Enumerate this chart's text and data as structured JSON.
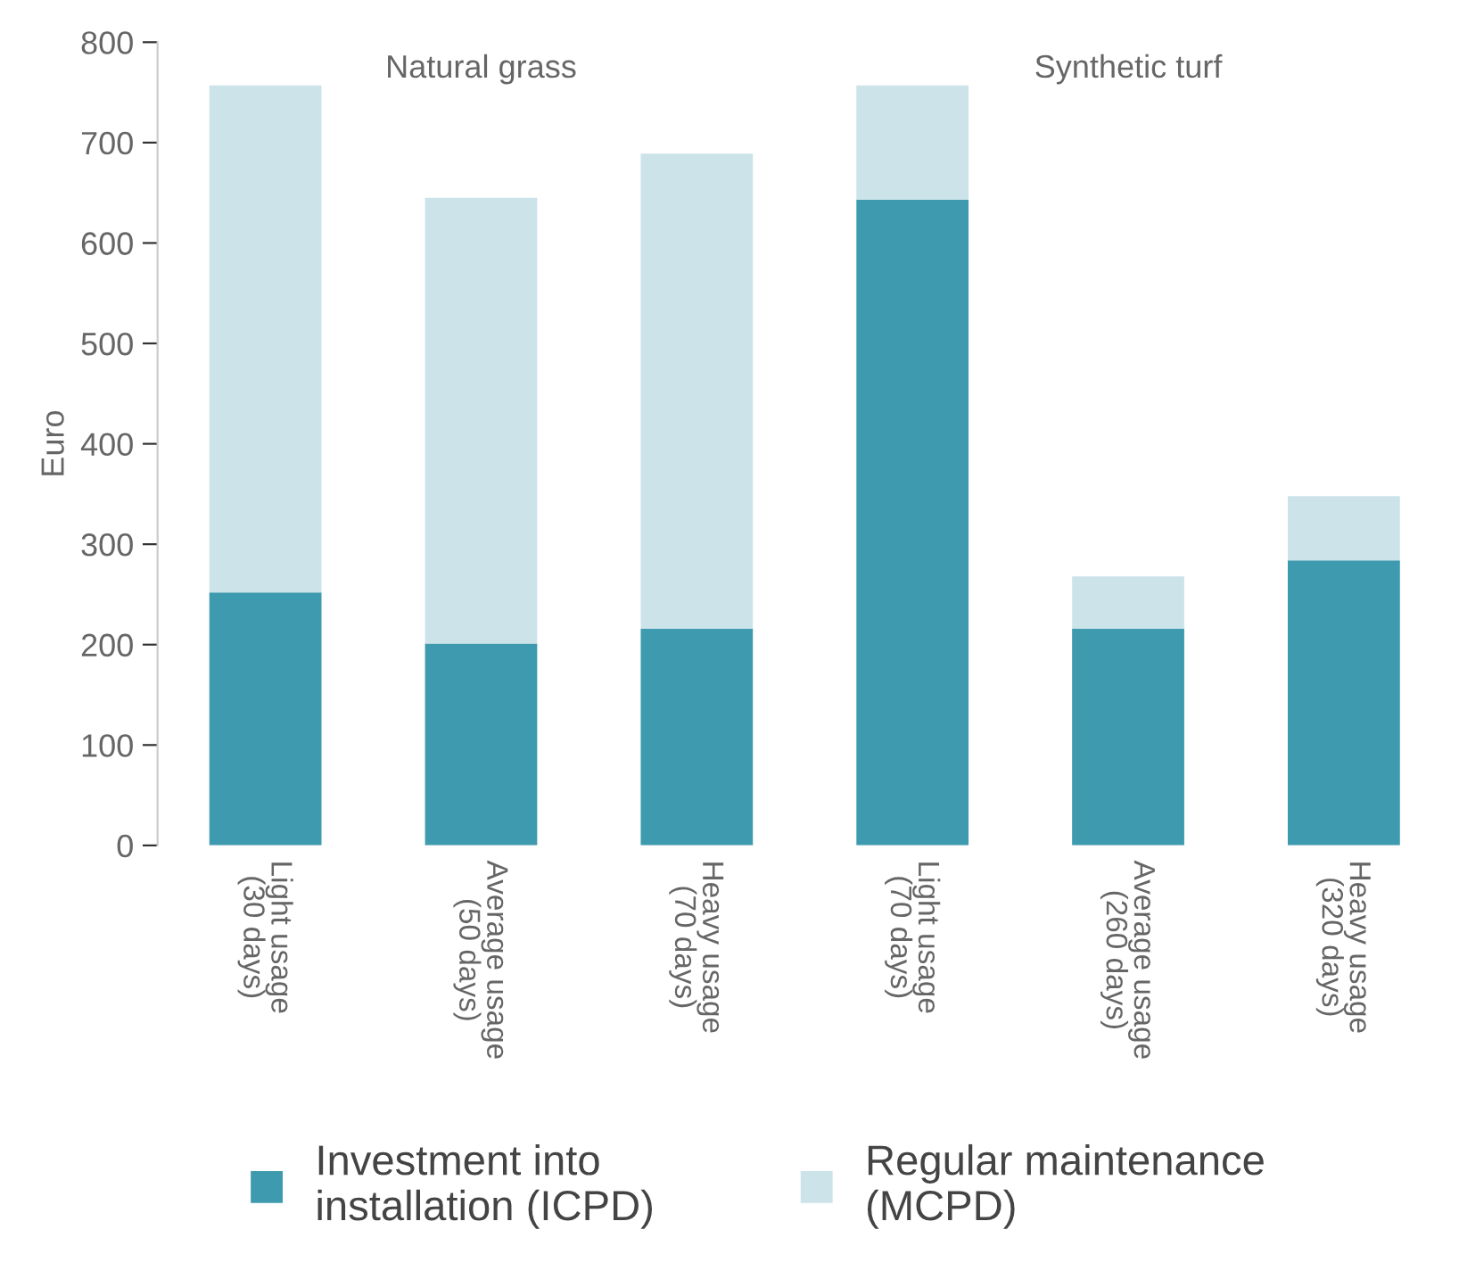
{
  "chart_data": {
    "type": "bar",
    "stacked": true,
    "ylabel": "Euro",
    "categories": [
      "Light usage\n(30 days)",
      "Average usage\n(50 days)",
      "Heavy usage\n(70 days)",
      "Light usage\n(70 days)",
      "Average usage\n(260 days)",
      "Heavy usage\n(320 days)"
    ],
    "series": [
      {
        "name": "Investment into\ninstallation (ICPD)",
        "color": "#3e9aae",
        "values": [
          252,
          201,
          216,
          643,
          216,
          284
        ]
      },
      {
        "name": "Regular maintenance\n(MCPD)",
        "color": "#cde3ea",
        "values": [
          505,
          444,
          473,
          114,
          52,
          64
        ]
      }
    ],
    "ylim": [
      0,
      800
    ],
    "yticks": [
      0,
      100,
      200,
      300,
      400,
      500,
      600,
      700,
      800
    ],
    "annotations": [
      "Natural grass",
      "Synthetic turf"
    ],
    "legend": "bottom",
    "grid": false
  }
}
